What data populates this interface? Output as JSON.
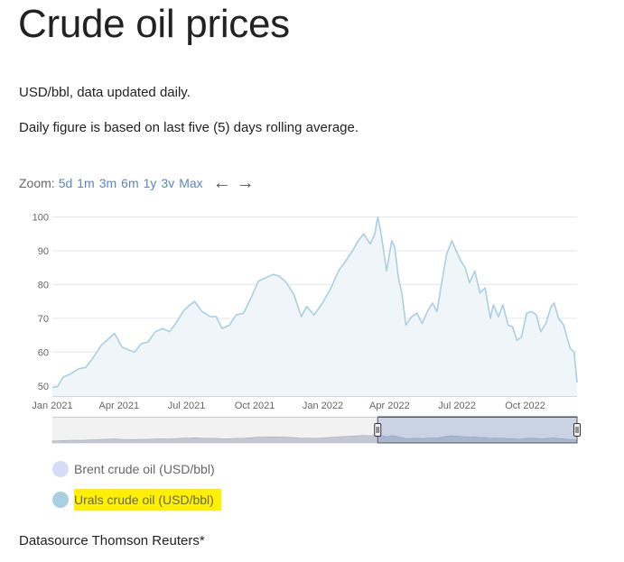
{
  "page": {
    "title": "Crude oil prices",
    "subtitle": "USD/bbl, data updated daily.",
    "note": "Daily figure is based on last five (5) days rolling average.",
    "footer": "Datasource Thomson Reuters*"
  },
  "zoom": {
    "label": "Zoom:",
    "options": [
      "5d",
      "1m",
      "3m",
      "6m",
      "1y",
      "3v",
      "Max"
    ],
    "back_icon": "arrow-left-icon",
    "forward_icon": "arrow-right-icon"
  },
  "chart_data": {
    "type": "area",
    "title": "",
    "xlabel": "",
    "ylabel": "",
    "ylim": [
      47,
      102
    ],
    "xlim": [
      "2021-01-01",
      "2022-12-10"
    ],
    "grid": true,
    "y_ticks": [
      50,
      60,
      70,
      80,
      90,
      100
    ],
    "x_ticks": [
      {
        "date": "2021-01-01",
        "label": "Jan 2021"
      },
      {
        "date": "2021-04-01",
        "label": "Apr 2021"
      },
      {
        "date": "2021-07-01",
        "label": "Jul 2021"
      },
      {
        "date": "2021-10-01",
        "label": "Oct 2021"
      },
      {
        "date": "2022-01-01",
        "label": "Jan 2022"
      },
      {
        "date": "2022-04-01",
        "label": "Apr 2022"
      },
      {
        "date": "2022-07-01",
        "label": "Jul 2022"
      },
      {
        "date": "2022-10-01",
        "label": "Oct 2022"
      }
    ],
    "legend_position": "bottom-left",
    "series": [
      {
        "name": "Urals crude oil (USD/bbl)",
        "color": "#a9cfe3",
        "visible": true,
        "points": [
          [
            "2021-01-01",
            49.5
          ],
          [
            "2021-01-08",
            49.8
          ],
          [
            "2021-01-15",
            52.5
          ],
          [
            "2021-01-25",
            53.5
          ],
          [
            "2021-02-05",
            55
          ],
          [
            "2021-02-15",
            55.5
          ],
          [
            "2021-02-24",
            58
          ],
          [
            "2021-03-08",
            62
          ],
          [
            "2021-03-18",
            64
          ],
          [
            "2021-03-26",
            65.5
          ],
          [
            "2021-04-05",
            61.5
          ],
          [
            "2021-04-15",
            60.5
          ],
          [
            "2021-04-22",
            60
          ],
          [
            "2021-05-01",
            62.5
          ],
          [
            "2021-05-10",
            63
          ],
          [
            "2021-05-20",
            66
          ],
          [
            "2021-05-30",
            67
          ],
          [
            "2021-06-08",
            66
          ],
          [
            "2021-06-18",
            69
          ],
          [
            "2021-06-28",
            72.5
          ],
          [
            "2021-07-06",
            74
          ],
          [
            "2021-07-12",
            75
          ],
          [
            "2021-07-22",
            72
          ],
          [
            "2021-08-02",
            70.5
          ],
          [
            "2021-08-10",
            70.5
          ],
          [
            "2021-08-18",
            67
          ],
          [
            "2021-08-28",
            68
          ],
          [
            "2021-09-06",
            71
          ],
          [
            "2021-09-16",
            71.5
          ],
          [
            "2021-09-26",
            76
          ],
          [
            "2021-10-06",
            81
          ],
          [
            "2021-10-16",
            82
          ],
          [
            "2021-10-26",
            83
          ],
          [
            "2021-11-03",
            82.5
          ],
          [
            "2021-11-13",
            80.5
          ],
          [
            "2021-11-23",
            77
          ],
          [
            "2021-12-03",
            70.5
          ],
          [
            "2021-12-10",
            73.5
          ],
          [
            "2021-12-20",
            71
          ],
          [
            "2021-12-30",
            74
          ],
          [
            "2022-01-12",
            79
          ],
          [
            "2022-01-22",
            84
          ],
          [
            "2022-02-01",
            87
          ],
          [
            "2022-02-10",
            90
          ],
          [
            "2022-02-18",
            93
          ],
          [
            "2022-02-25",
            95
          ],
          [
            "2022-03-06",
            92
          ],
          [
            "2022-03-12",
            95
          ],
          [
            "2022-03-16",
            100
          ],
          [
            "2022-03-20",
            96
          ],
          [
            "2022-03-28",
            84
          ],
          [
            "2022-04-04",
            93
          ],
          [
            "2022-04-08",
            91
          ],
          [
            "2022-04-13",
            82
          ],
          [
            "2022-04-18",
            77
          ],
          [
            "2022-04-23",
            68
          ],
          [
            "2022-05-01",
            70.5
          ],
          [
            "2022-05-08",
            71.5
          ],
          [
            "2022-05-15",
            68.5
          ],
          [
            "2022-05-22",
            72
          ],
          [
            "2022-05-29",
            74.5
          ],
          [
            "2022-06-04",
            72
          ],
          [
            "2022-06-10",
            80
          ],
          [
            "2022-06-17",
            89
          ],
          [
            "2022-06-24",
            93
          ],
          [
            "2022-06-30",
            90
          ],
          [
            "2022-07-06",
            87
          ],
          [
            "2022-07-12",
            85
          ],
          [
            "2022-07-18",
            80.5
          ],
          [
            "2022-07-25",
            84
          ],
          [
            "2022-08-01",
            77.5
          ],
          [
            "2022-08-08",
            79
          ],
          [
            "2022-08-15",
            70
          ],
          [
            "2022-08-19",
            74
          ],
          [
            "2022-08-26",
            70.5
          ],
          [
            "2022-09-01",
            74
          ],
          [
            "2022-09-08",
            68
          ],
          [
            "2022-09-14",
            67.5
          ],
          [
            "2022-09-20",
            63.5
          ],
          [
            "2022-09-26",
            64.5
          ],
          [
            "2022-10-03",
            71.5
          ],
          [
            "2022-10-10",
            72
          ],
          [
            "2022-10-16",
            71
          ],
          [
            "2022-10-22",
            66
          ],
          [
            "2022-10-29",
            68.5
          ],
          [
            "2022-11-05",
            73.5
          ],
          [
            "2022-11-09",
            74.5
          ],
          [
            "2022-11-15",
            70
          ],
          [
            "2022-11-22",
            68
          ],
          [
            "2022-11-27",
            64
          ],
          [
            "2022-12-01",
            61
          ],
          [
            "2022-12-06",
            60
          ],
          [
            "2022-12-10",
            51
          ]
        ]
      },
      {
        "name": "Brent crude oil (USD/bbl)",
        "color": "#d4dcf7",
        "visible": false,
        "points": []
      }
    ]
  },
  "navigator": {
    "range_start": "2022-03-16",
    "range_end": "2022-12-10"
  },
  "colors": {
    "series_line": "#a9cfe3",
    "series_fill": "#eff5f9",
    "axis_line": "#ccd6eb",
    "grid_line": "#e6e6e6",
    "navigator_fill": "#c5c8d4",
    "navigator_selected": "#bfc3d4",
    "zoom_link": "#5a87c4",
    "highlight": "#fff000"
  }
}
